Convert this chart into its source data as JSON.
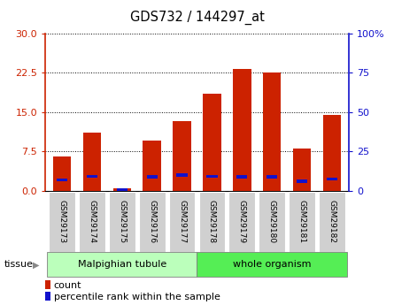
{
  "title": "GDS732 / 144297_at",
  "samples": [
    "GSM29173",
    "GSM29174",
    "GSM29175",
    "GSM29176",
    "GSM29177",
    "GSM29178",
    "GSM29179",
    "GSM29180",
    "GSM29181",
    "GSM29182"
  ],
  "count_values": [
    6.5,
    11.0,
    0.5,
    9.5,
    13.2,
    18.5,
    23.2,
    22.5,
    8.0,
    14.5
  ],
  "percentile_values": [
    6.9,
    9.0,
    0.5,
    8.7,
    10.0,
    9.2,
    8.8,
    8.7,
    6.1,
    7.5
  ],
  "left_ylim": [
    0,
    30
  ],
  "right_ylim": [
    0,
    100
  ],
  "left_yticks": [
    0,
    7.5,
    15,
    22.5,
    30
  ],
  "right_yticks": [
    0,
    25,
    50,
    75,
    100
  ],
  "bar_color_red": "#cc2200",
  "bar_color_blue": "#1111cc",
  "tissue_groups": [
    {
      "label": "Malpighian tubule",
      "indices": [
        0,
        1,
        2,
        3,
        4
      ],
      "color": "#bbffbb"
    },
    {
      "label": "whole organism",
      "indices": [
        5,
        6,
        7,
        8,
        9
      ],
      "color": "#55ee55"
    }
  ],
  "tissue_label": "tissue",
  "legend_count": "count",
  "legend_pct": "percentile rank within the sample",
  "plot_bg": "#ffffff",
  "tick_label_bg": "#d0d0d0",
  "bar_width": 0.6,
  "blue_bar_width": 0.6,
  "blue_bar_height": 0.6
}
